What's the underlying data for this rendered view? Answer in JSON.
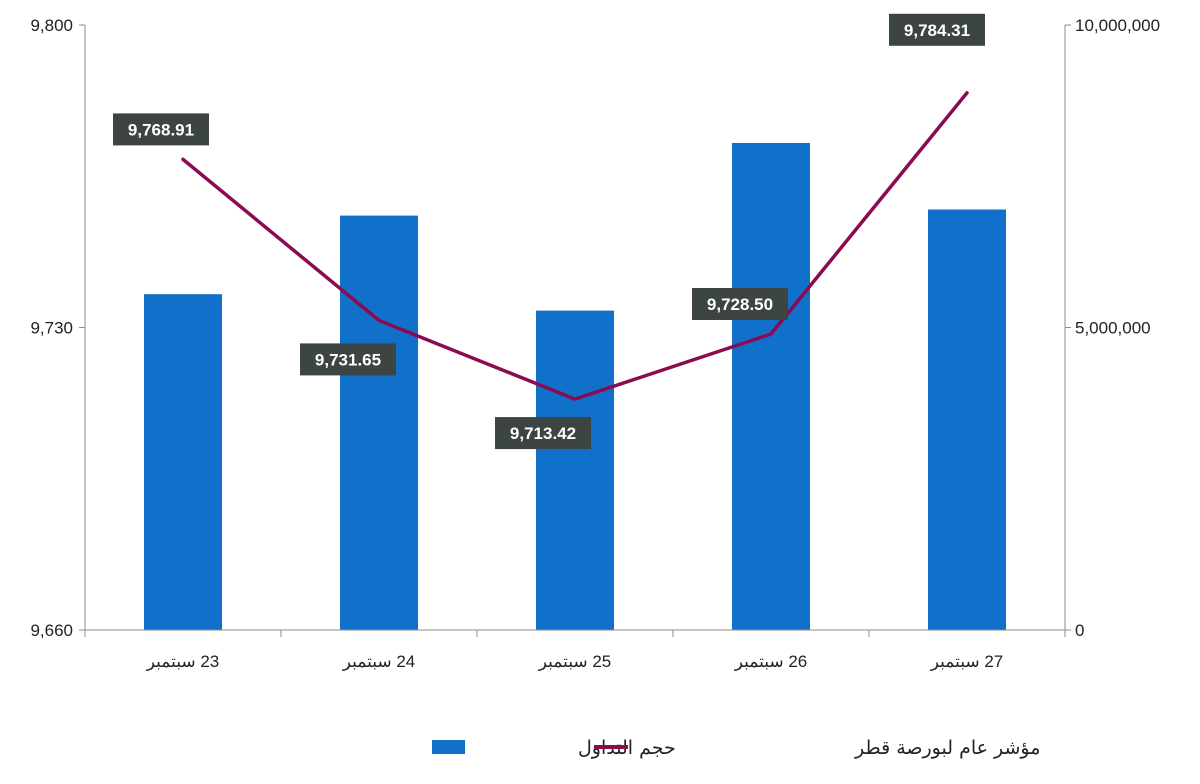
{
  "chart_data": {
    "type": "bar",
    "categories": [
      "23 سبتمبر",
      "24 سبتمبر",
      "25 سبتمبر",
      "26 سبتمبر",
      "27 سبتمبر"
    ],
    "series": [
      {
        "name": "حجم التداول",
        "type": "bar",
        "axis": "right",
        "color": "#1170C9",
        "values": [
          5550000,
          6850000,
          5280000,
          8050000,
          6950000
        ]
      },
      {
        "name": "مؤشر عام لبورصة قطر",
        "type": "line",
        "axis": "left",
        "color": "#8B0A50",
        "values": [
          9768.91,
          9731.65,
          9713.42,
          9728.5,
          9784.31
        ],
        "labels": [
          "9,768.91",
          "9,731.65",
          "9,713.42",
          "9,728.50",
          "9,784.31"
        ]
      }
    ],
    "y_left": {
      "min": 9660,
      "max": 9800,
      "ticks": [
        "9,660",
        "9,730",
        "9,800"
      ]
    },
    "y_right": {
      "min": 0,
      "max": 10000000,
      "ticks": [
        "0",
        "5,000,000",
        "10,000,000"
      ]
    },
    "legend": {
      "position": "bottom"
    },
    "grid": false,
    "label_box_color": "#3D4542"
  }
}
